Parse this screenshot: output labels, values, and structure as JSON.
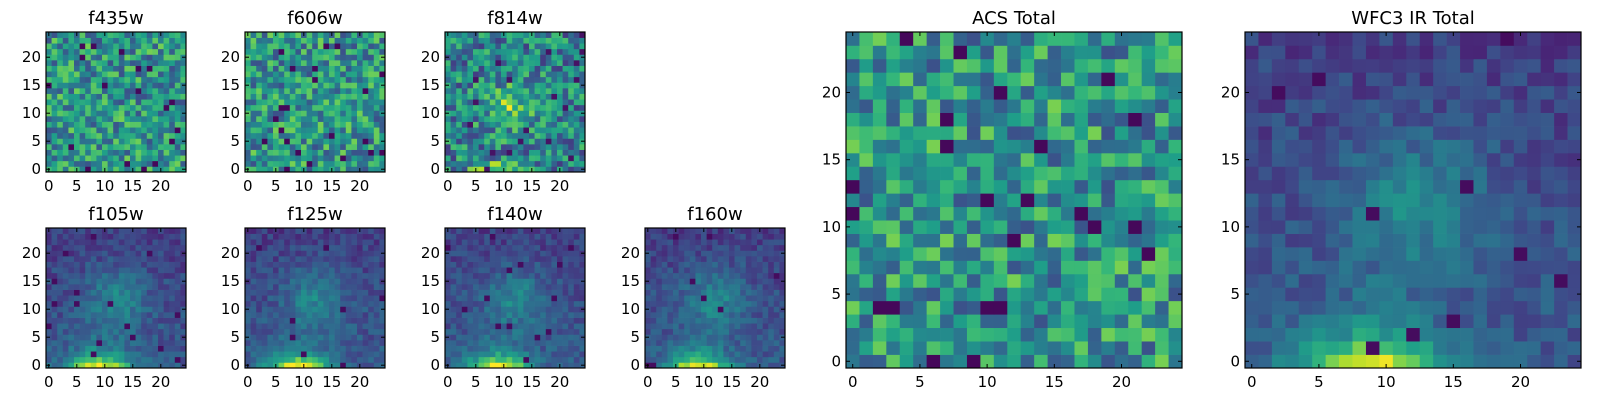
{
  "colormap": "viridis",
  "chart_data": [
    {
      "type": "heatmap",
      "title": "f435w",
      "texture": "noise",
      "xticks": [
        0,
        5,
        10,
        15,
        20
      ],
      "yticks": [
        0,
        5,
        10,
        15,
        20
      ],
      "xlim": [
        0,
        25
      ],
      "ylim": [
        0,
        25
      ]
    },
    {
      "type": "heatmap",
      "title": "f606w",
      "texture": "noise",
      "xticks": [
        0,
        5,
        10,
        15,
        20
      ],
      "yticks": [
        0,
        5,
        10,
        15,
        20
      ],
      "xlim": [
        0,
        25
      ],
      "ylim": [
        0,
        25
      ]
    },
    {
      "type": "heatmap",
      "title": "f814w",
      "texture": "faint-source",
      "xticks": [
        0,
        5,
        10,
        15,
        20
      ],
      "yticks": [
        0,
        5,
        10,
        15,
        20
      ],
      "xlim": [
        0,
        25
      ],
      "ylim": [
        0,
        25
      ]
    },
    {
      "type": "heatmap",
      "title": "f105w",
      "texture": "smooth-source",
      "xticks": [
        0,
        5,
        10,
        15,
        20
      ],
      "yticks": [
        0,
        5,
        10,
        15,
        20
      ],
      "xlim": [
        0,
        25
      ],
      "ylim": [
        0,
        25
      ]
    },
    {
      "type": "heatmap",
      "title": "f125w",
      "texture": "smooth-source",
      "xticks": [
        0,
        5,
        10,
        15,
        20
      ],
      "yticks": [
        0,
        5,
        10,
        15,
        20
      ],
      "xlim": [
        0,
        25
      ],
      "ylim": [
        0,
        25
      ]
    },
    {
      "type": "heatmap",
      "title": "f140w",
      "texture": "smooth-source",
      "xticks": [
        0,
        5,
        10,
        15,
        20
      ],
      "yticks": [
        0,
        5,
        10,
        15,
        20
      ],
      "xlim": [
        0,
        25
      ],
      "ylim": [
        0,
        25
      ]
    },
    {
      "type": "heatmap",
      "title": "f160w",
      "texture": "smooth-source",
      "xticks": [
        0,
        5,
        10,
        15,
        20
      ],
      "yticks": [
        0,
        5,
        10,
        15,
        20
      ],
      "xlim": [
        0,
        25
      ],
      "ylim": [
        0,
        25
      ]
    },
    {
      "type": "heatmap",
      "title": "ACS Total",
      "texture": "noise",
      "xticks": [
        0,
        5,
        10,
        15,
        20
      ],
      "yticks": [
        0,
        5,
        10,
        15,
        20
      ],
      "xlim": [
        0,
        25
      ],
      "ylim": [
        0,
        25
      ]
    },
    {
      "type": "heatmap",
      "title": "WFC3 IR Total",
      "texture": "smooth-source",
      "xticks": [
        0,
        5,
        10,
        15,
        20
      ],
      "yticks": [
        0,
        5,
        10,
        15,
        20
      ],
      "xlim": [
        0,
        25
      ],
      "ylim": [
        0,
        25
      ]
    }
  ]
}
